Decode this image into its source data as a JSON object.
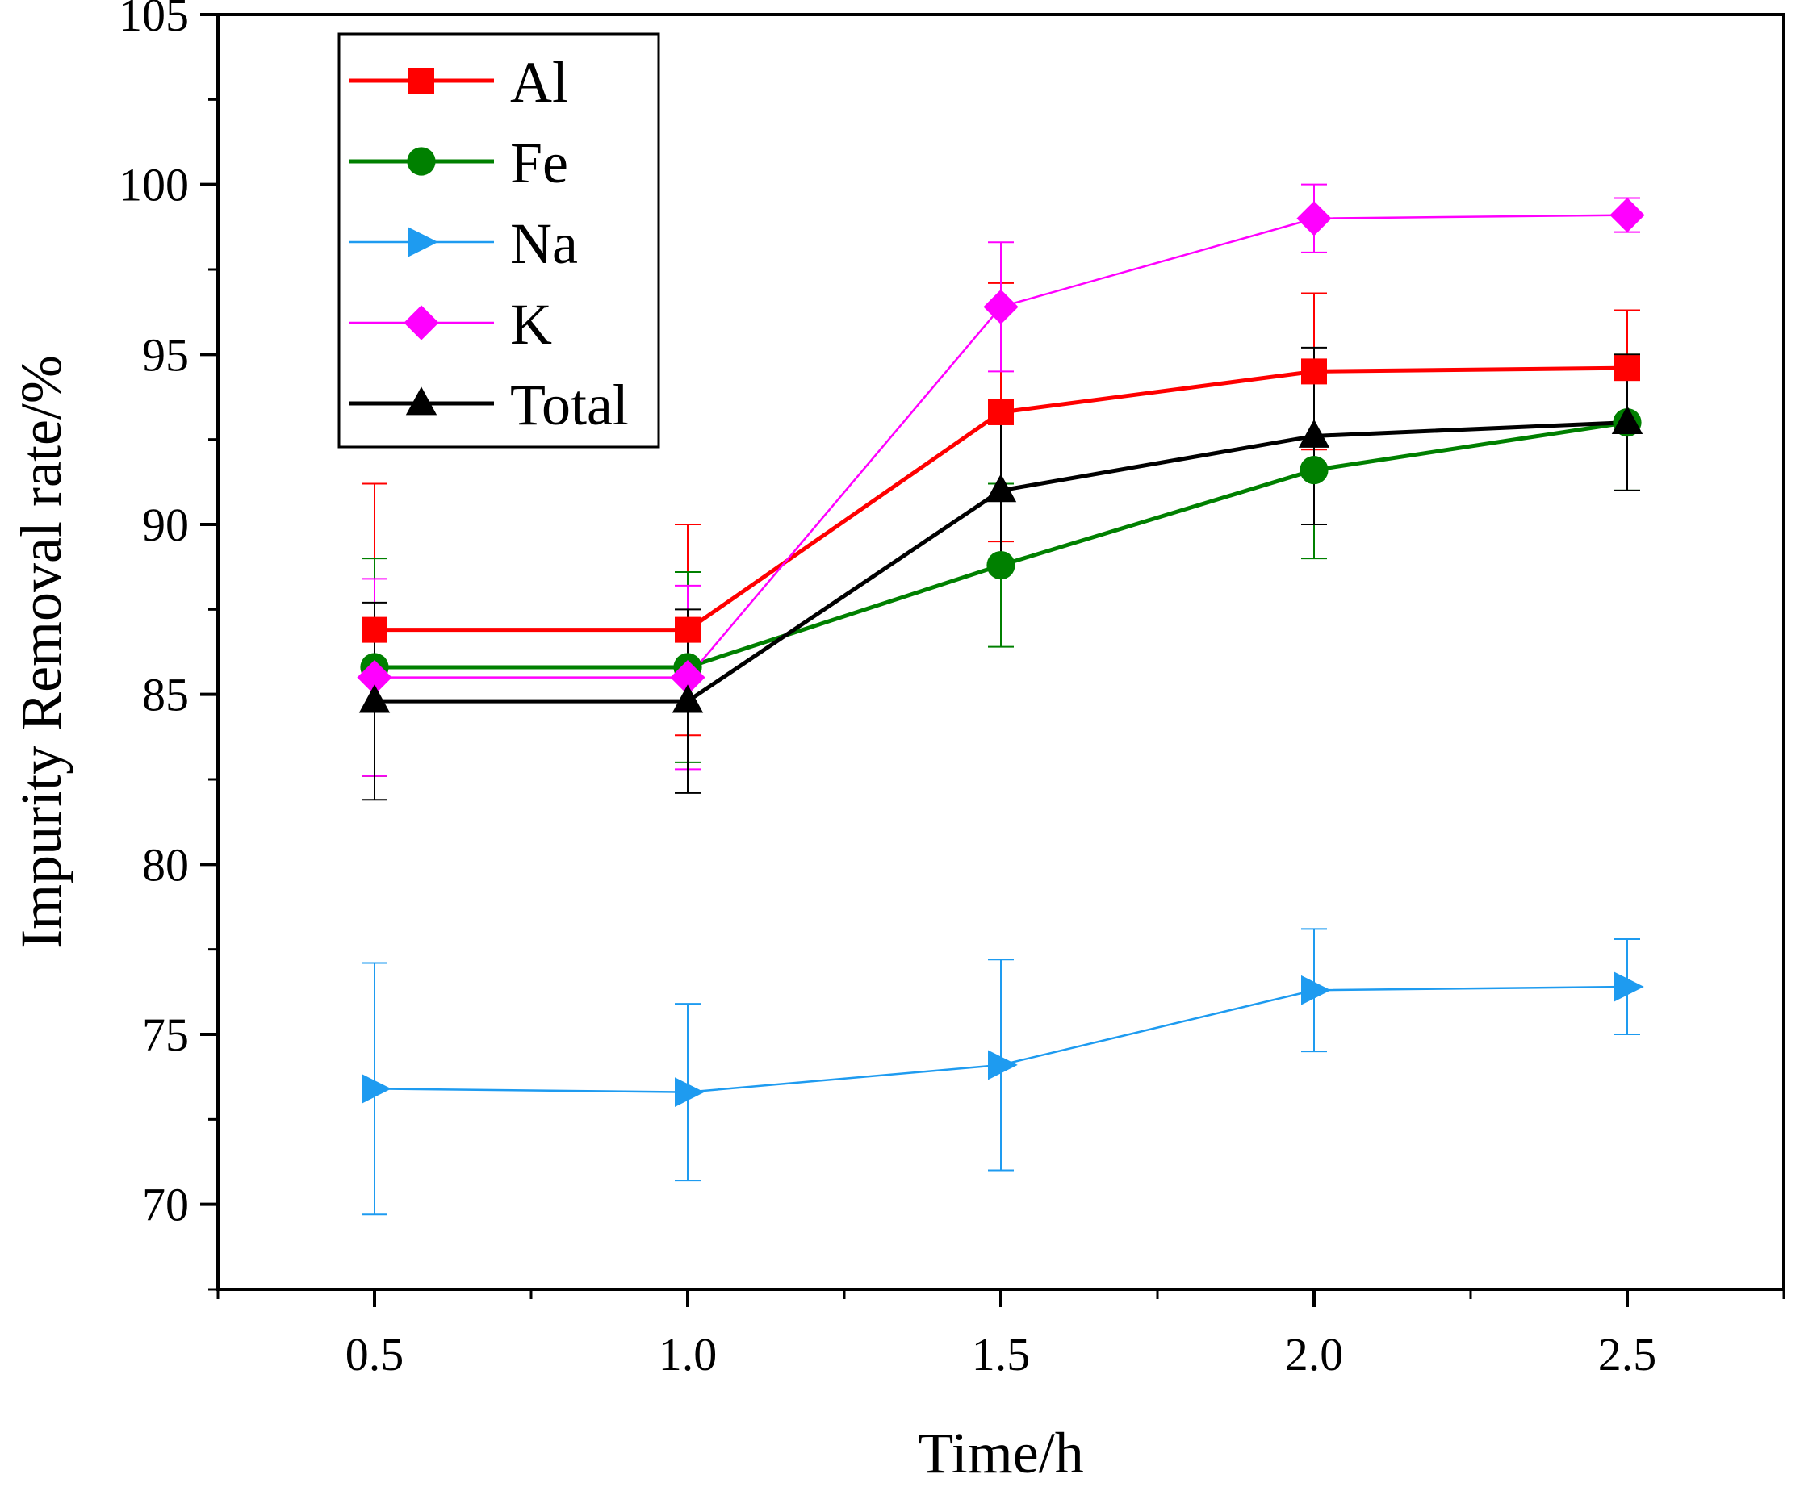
{
  "chart_data": {
    "type": "line",
    "title": "",
    "xlabel": "Time/h",
    "ylabel": "Impurity Removal rate/%",
    "xlim": [
      0.25,
      2.75
    ],
    "ylim": [
      67.5,
      105
    ],
    "x_ticks": [
      0.5,
      1.0,
      1.5,
      2.0,
      2.5
    ],
    "x_tick_labels": [
      "0.5",
      "1.0",
      "1.5",
      "2.0",
      "2.5"
    ],
    "y_ticks": [
      70,
      75,
      80,
      85,
      90,
      95,
      100,
      105
    ],
    "y_tick_labels": [
      "70",
      "75",
      "80",
      "85",
      "90",
      "95",
      "100",
      "105"
    ],
    "grid": false,
    "legend_position": "top-left",
    "x": [
      0.5,
      1.0,
      1.5,
      2.0,
      2.5
    ],
    "series": [
      {
        "name": "Al",
        "color": "#ff0000",
        "marker": "square",
        "line_width": "thick",
        "values": [
          86.9,
          86.9,
          93.3,
          94.5,
          94.6
        ],
        "errors": [
          4.3,
          3.1,
          3.8,
          2.3,
          1.7
        ]
      },
      {
        "name": "Fe",
        "color": "#008000",
        "marker": "circle",
        "line_width": "thick",
        "values": [
          85.8,
          85.8,
          88.8,
          91.6,
          93.0
        ],
        "errors": [
          3.2,
          2.8,
          2.4,
          2.6,
          2.0
        ]
      },
      {
        "name": "Na",
        "color": "#1e9bf0",
        "marker": "triangle-right",
        "line_width": "thin",
        "values": [
          73.4,
          73.3,
          74.1,
          76.3,
          76.4
        ],
        "errors": [
          3.7,
          2.6,
          3.1,
          1.8,
          1.4
        ]
      },
      {
        "name": "K",
        "color": "#ff00ff",
        "marker": "diamond",
        "line_width": "thin",
        "values": [
          85.5,
          85.5,
          96.4,
          99.0,
          99.1
        ],
        "errors": [
          2.9,
          2.7,
          1.9,
          1.0,
          0.5
        ]
      },
      {
        "name": "Total",
        "color": "#000000",
        "marker": "triangle-up",
        "line_width": "thick",
        "values": [
          84.8,
          84.8,
          91.0,
          92.6,
          93.0
        ],
        "errors": [
          2.9,
          2.7,
          2.1,
          2.6,
          2.0
        ]
      }
    ]
  }
}
